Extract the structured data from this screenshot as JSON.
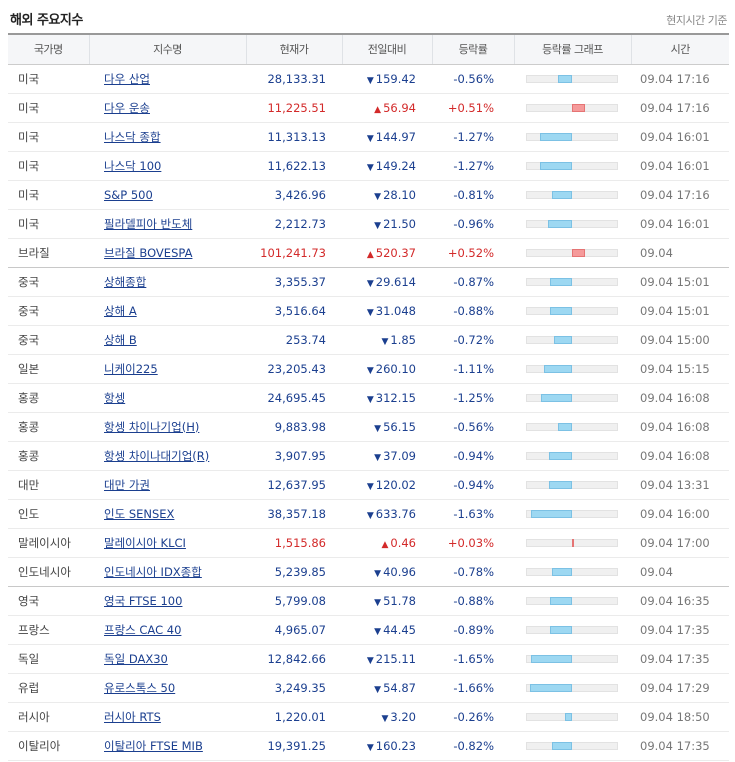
{
  "title": "해외 주요지수",
  "note": "현지시간 기준",
  "columns": [
    "국가명",
    "지수명",
    "현재가",
    "전일대비",
    "등락률",
    "등락률 그래프",
    "시간"
  ],
  "colors": {
    "up": "#d32a2a",
    "down": "#1b3f8f",
    "bar_negative": "#9dd8f2",
    "bar_positive": "#f59a9a"
  },
  "rows": [
    {
      "country": "미국",
      "name": "다우 산업",
      "price": "28,133.31",
      "dir": "down",
      "change": "159.42",
      "rate": "-0.56%",
      "time": "09.04 17:16"
    },
    {
      "country": "미국",
      "name": "다우 운송",
      "price": "11,225.51",
      "dir": "up",
      "change": "56.94",
      "rate": "+0.51%",
      "time": "09.04 17:16"
    },
    {
      "country": "미국",
      "name": "나스닥 종합",
      "price": "11,313.13",
      "dir": "down",
      "change": "144.97",
      "rate": "-1.27%",
      "time": "09.04 16:01"
    },
    {
      "country": "미국",
      "name": "나스닥 100",
      "price": "11,622.13",
      "dir": "down",
      "change": "149.24",
      "rate": "-1.27%",
      "time": "09.04 16:01"
    },
    {
      "country": "미국",
      "name": "S&P 500",
      "price": "3,426.96",
      "dir": "down",
      "change": "28.10",
      "rate": "-0.81%",
      "time": "09.04 17:16"
    },
    {
      "country": "미국",
      "name": "필라델피아 반도체",
      "price": "2,212.73",
      "dir": "down",
      "change": "21.50",
      "rate": "-0.96%",
      "time": "09.04 16:01"
    },
    {
      "country": "브라질",
      "name": "브라질 BOVESPA",
      "price": "101,241.73",
      "dir": "up",
      "change": "520.37",
      "rate": "+0.52%",
      "time": "09.04",
      "group_end": true
    },
    {
      "country": "중국",
      "name": "상해종합",
      "price": "3,355.37",
      "dir": "down",
      "change": "29.614",
      "rate": "-0.87%",
      "time": "09.04 15:01"
    },
    {
      "country": "중국",
      "name": "상해 A",
      "price": "3,516.64",
      "dir": "down",
      "change": "31.048",
      "rate": "-0.88%",
      "time": "09.04 15:01"
    },
    {
      "country": "중국",
      "name": "상해 B",
      "price": "253.74",
      "dir": "down",
      "change": "1.85",
      "rate": "-0.72%",
      "time": "09.04 15:00"
    },
    {
      "country": "일본",
      "name": "니케이225",
      "price": "23,205.43",
      "dir": "down",
      "change": "260.10",
      "rate": "-1.11%",
      "time": "09.04 15:15"
    },
    {
      "country": "홍콩",
      "name": "항셍",
      "price": "24,695.45",
      "dir": "down",
      "change": "312.15",
      "rate": "-1.25%",
      "time": "09.04 16:08"
    },
    {
      "country": "홍콩",
      "name": "항셍 차이나기업(H)",
      "price": "9,883.98",
      "dir": "down",
      "change": "56.15",
      "rate": "-0.56%",
      "time": "09.04 16:08"
    },
    {
      "country": "홍콩",
      "name": "항셍 차이나대기업(R)",
      "price": "3,907.95",
      "dir": "down",
      "change": "37.09",
      "rate": "-0.94%",
      "time": "09.04 16:08"
    },
    {
      "country": "대만",
      "name": "대만 가권",
      "price": "12,637.95",
      "dir": "down",
      "change": "120.02",
      "rate": "-0.94%",
      "time": "09.04 13:31"
    },
    {
      "country": "인도",
      "name": "인도 SENSEX",
      "price": "38,357.18",
      "dir": "down",
      "change": "633.76",
      "rate": "-1.63%",
      "time": "09.04 16:00"
    },
    {
      "country": "말레이시아",
      "name": "말레이시아 KLCI",
      "price": "1,515.86",
      "dir": "up",
      "change": "0.46",
      "rate": "+0.03%",
      "time": "09.04 17:00"
    },
    {
      "country": "인도네시아",
      "name": "인도네시아 IDX종합",
      "price": "5,239.85",
      "dir": "down",
      "change": "40.96",
      "rate": "-0.78%",
      "time": "09.04",
      "group_end": true
    },
    {
      "country": "영국",
      "name": "영국 FTSE 100",
      "price": "5,799.08",
      "dir": "down",
      "change": "51.78",
      "rate": "-0.88%",
      "time": "09.04 16:35"
    },
    {
      "country": "프랑스",
      "name": "프랑스 CAC 40",
      "price": "4,965.07",
      "dir": "down",
      "change": "44.45",
      "rate": "-0.89%",
      "time": "09.04 17:35"
    },
    {
      "country": "독일",
      "name": "독일 DAX30",
      "price": "12,842.66",
      "dir": "down",
      "change": "215.11",
      "rate": "-1.65%",
      "time": "09.04 17:35"
    },
    {
      "country": "유럽",
      "name": "유로스톡스 50",
      "price": "3,249.35",
      "dir": "down",
      "change": "54.87",
      "rate": "-1.66%",
      "time": "09.04 17:29"
    },
    {
      "country": "러시아",
      "name": "러시아 RTS",
      "price": "1,220.01",
      "dir": "down",
      "change": "3.20",
      "rate": "-0.26%",
      "time": "09.04 18:50"
    },
    {
      "country": "이탈리아",
      "name": "이탈리아 FTSE MIB",
      "price": "19,391.25",
      "dir": "down",
      "change": "160.23",
      "rate": "-0.82%",
      "time": "09.04 17:35"
    }
  ]
}
